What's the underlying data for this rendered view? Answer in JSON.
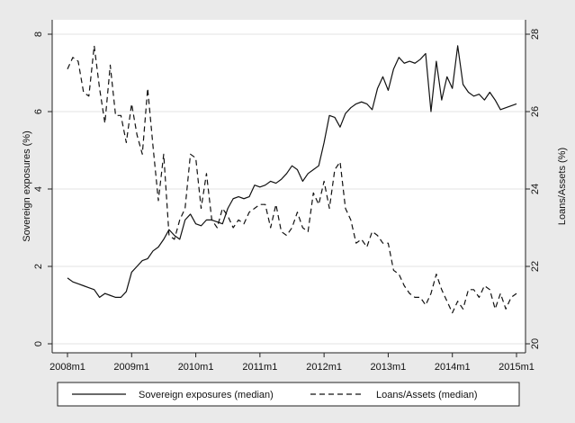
{
  "chart_data": {
    "type": "line",
    "x_unit": "month",
    "x_range": [
      "2008m1",
      "2015m1"
    ],
    "x_ticks": [
      "2008m1",
      "2009m1",
      "2010m1",
      "2011m1",
      "2012m1",
      "2013m1",
      "2014m1",
      "2015m1"
    ],
    "y_left": {
      "label": "Sovereign exposures (%)",
      "range": [
        0,
        8
      ],
      "ticks": [
        0,
        2,
        4,
        6,
        8
      ]
    },
    "y_right": {
      "label": "Loans/Assets (%)",
      "range": [
        20,
        28
      ],
      "ticks": [
        20,
        22,
        24,
        26,
        28
      ]
    },
    "grid": "horizontal",
    "legend": "bottom",
    "series": [
      {
        "name": "Sovereign exposures (median)",
        "axis": "left",
        "style": "solid",
        "points": [
          [
            "2008m1",
            1.7
          ],
          [
            "2008m2",
            1.6
          ],
          [
            "2008m3",
            1.55
          ],
          [
            "2008m4",
            1.5
          ],
          [
            "2008m5",
            1.45
          ],
          [
            "2008m6",
            1.4
          ],
          [
            "2008m7",
            1.2
          ],
          [
            "2008m8",
            1.3
          ],
          [
            "2008m9",
            1.25
          ],
          [
            "2008m10",
            1.2
          ],
          [
            "2008m11",
            1.2
          ],
          [
            "2008m12",
            1.35
          ],
          [
            "2009m1",
            1.85
          ],
          [
            "2009m2",
            2.0
          ],
          [
            "2009m3",
            2.15
          ],
          [
            "2009m4",
            2.2
          ],
          [
            "2009m5",
            2.4
          ],
          [
            "2009m6",
            2.5
          ],
          [
            "2009m7",
            2.7
          ],
          [
            "2009m8",
            2.95
          ],
          [
            "2009m9",
            2.8
          ],
          [
            "2009m10",
            2.7
          ],
          [
            "2009m11",
            3.2
          ],
          [
            "2009m12",
            3.35
          ],
          [
            "2010m1",
            3.1
          ],
          [
            "2010m2",
            3.05
          ],
          [
            "2010m3",
            3.2
          ],
          [
            "2010m4",
            3.2
          ],
          [
            "2010m5",
            3.15
          ],
          [
            "2010m6",
            3.1
          ],
          [
            "2010m7",
            3.5
          ],
          [
            "2010m8",
            3.75
          ],
          [
            "2010m9",
            3.8
          ],
          [
            "2010m10",
            3.75
          ],
          [
            "2010m11",
            3.8
          ],
          [
            "2010m12",
            4.1
          ],
          [
            "2011m1",
            4.05
          ],
          [
            "2011m2",
            4.1
          ],
          [
            "2011m3",
            4.2
          ],
          [
            "2011m4",
            4.15
          ],
          [
            "2011m5",
            4.25
          ],
          [
            "2011m6",
            4.4
          ],
          [
            "2011m7",
            4.6
          ],
          [
            "2011m8",
            4.5
          ],
          [
            "2011m9",
            4.2
          ],
          [
            "2011m10",
            4.4
          ],
          [
            "2011m11",
            4.5
          ],
          [
            "2011m12",
            4.6
          ],
          [
            "2012m1",
            5.2
          ],
          [
            "2012m2",
            5.9
          ],
          [
            "2012m3",
            5.85
          ],
          [
            "2012m4",
            5.6
          ],
          [
            "2012m5",
            5.95
          ],
          [
            "2012m6",
            6.1
          ],
          [
            "2012m7",
            6.2
          ],
          [
            "2012m8",
            6.25
          ],
          [
            "2012m9",
            6.2
          ],
          [
            "2012m10",
            6.05
          ],
          [
            "2012m11",
            6.6
          ],
          [
            "2012m12",
            6.9
          ],
          [
            "2013m1",
            6.55
          ],
          [
            "2013m2",
            7.1
          ],
          [
            "2013m3",
            7.4
          ],
          [
            "2013m4",
            7.25
          ],
          [
            "2013m5",
            7.3
          ],
          [
            "2013m6",
            7.25
          ],
          [
            "2013m7",
            7.35
          ],
          [
            "2013m8",
            7.5
          ],
          [
            "2013m9",
            6.0
          ],
          [
            "2013m10",
            7.3
          ],
          [
            "2013m11",
            6.3
          ],
          [
            "2013m12",
            6.9
          ],
          [
            "2014m1",
            6.6
          ],
          [
            "2014m2",
            7.7
          ],
          [
            "2014m3",
            6.7
          ],
          [
            "2014m4",
            6.5
          ],
          [
            "2014m5",
            6.4
          ],
          [
            "2014m6",
            6.45
          ],
          [
            "2014m7",
            6.3
          ],
          [
            "2014m8",
            6.5
          ],
          [
            "2014m9",
            6.3
          ],
          [
            "2014m10",
            6.05
          ],
          [
            "2014m11",
            6.1
          ],
          [
            "2015m1",
            6.2
          ]
        ]
      },
      {
        "name": "Loans/Assets (median)",
        "axis": "right",
        "style": "dashed",
        "points": [
          [
            "2008m1",
            27.1
          ],
          [
            "2008m2",
            27.4
          ],
          [
            "2008m3",
            27.3
          ],
          [
            "2008m4",
            26.5
          ],
          [
            "2008m5",
            26.4
          ],
          [
            "2008m6",
            27.7
          ],
          [
            "2008m7",
            26.6
          ],
          [
            "2008m8",
            25.7
          ],
          [
            "2008m9",
            27.2
          ],
          [
            "2008m10",
            25.9
          ],
          [
            "2008m11",
            25.9
          ],
          [
            "2008m12",
            25.2
          ],
          [
            "2009m1",
            26.2
          ],
          [
            "2009m2",
            25.4
          ],
          [
            "2009m3",
            24.9
          ],
          [
            "2009m4",
            26.6
          ],
          [
            "2009m5",
            25.1
          ],
          [
            "2009m6",
            23.7
          ],
          [
            "2009m7",
            24.9
          ],
          [
            "2009m8",
            22.8
          ],
          [
            "2009m9",
            22.7
          ],
          [
            "2009m10",
            23.2
          ],
          [
            "2009m11",
            23.5
          ],
          [
            "2009m12",
            24.9
          ],
          [
            "2010m1",
            24.8
          ],
          [
            "2010m2",
            23.5
          ],
          [
            "2010m3",
            24.4
          ],
          [
            "2010m4",
            23.2
          ],
          [
            "2010m5",
            23.0
          ],
          [
            "2010m6",
            23.5
          ],
          [
            "2010m7",
            23.3
          ],
          [
            "2010m8",
            23.0
          ],
          [
            "2010m9",
            23.2
          ],
          [
            "2010m10",
            23.1
          ],
          [
            "2010m11",
            23.4
          ],
          [
            "2010m12",
            23.5
          ],
          [
            "2011m1",
            23.6
          ],
          [
            "2011m2",
            23.6
          ],
          [
            "2011m3",
            23.0
          ],
          [
            "2011m4",
            23.6
          ],
          [
            "2011m5",
            22.9
          ],
          [
            "2011m6",
            22.8
          ],
          [
            "2011m7",
            23.0
          ],
          [
            "2011m8",
            23.4
          ],
          [
            "2011m9",
            23.0
          ],
          [
            "2011m10",
            22.9
          ],
          [
            "2011m11",
            23.9
          ],
          [
            "2011m12",
            23.6
          ],
          [
            "2012m1",
            24.2
          ],
          [
            "2012m2",
            23.5
          ],
          [
            "2012m3",
            24.5
          ],
          [
            "2012m4",
            24.7
          ],
          [
            "2012m5",
            23.5
          ],
          [
            "2012m6",
            23.2
          ],
          [
            "2012m7",
            22.6
          ],
          [
            "2012m8",
            22.7
          ],
          [
            "2012m9",
            22.5
          ],
          [
            "2012m10",
            22.9
          ],
          [
            "2012m11",
            22.8
          ],
          [
            "2012m12",
            22.6
          ],
          [
            "2013m1",
            22.6
          ],
          [
            "2013m2",
            21.9
          ],
          [
            "2013m3",
            21.8
          ],
          [
            "2013m4",
            21.5
          ],
          [
            "2013m5",
            21.3
          ],
          [
            "2013m6",
            21.2
          ],
          [
            "2013m7",
            21.2
          ],
          [
            "2013m8",
            21.0
          ],
          [
            "2013m9",
            21.3
          ],
          [
            "2013m10",
            21.8
          ],
          [
            "2013m11",
            21.4
          ],
          [
            "2013m12",
            21.1
          ],
          [
            "2014m1",
            20.8
          ],
          [
            "2014m2",
            21.1
          ],
          [
            "2014m3",
            20.9
          ],
          [
            "2014m4",
            21.4
          ],
          [
            "2014m5",
            21.4
          ],
          [
            "2014m6",
            21.2
          ],
          [
            "2014m7",
            21.5
          ],
          [
            "2014m8",
            21.4
          ],
          [
            "2014m9",
            20.9
          ],
          [
            "2014m10",
            21.3
          ],
          [
            "2014m11",
            20.9
          ],
          [
            "2014m12",
            21.2
          ],
          [
            "2015m1",
            21.3
          ]
        ]
      }
    ],
    "legend_entries": [
      "Sovereign exposures (median)",
      "Loans/Assets (median)"
    ]
  }
}
